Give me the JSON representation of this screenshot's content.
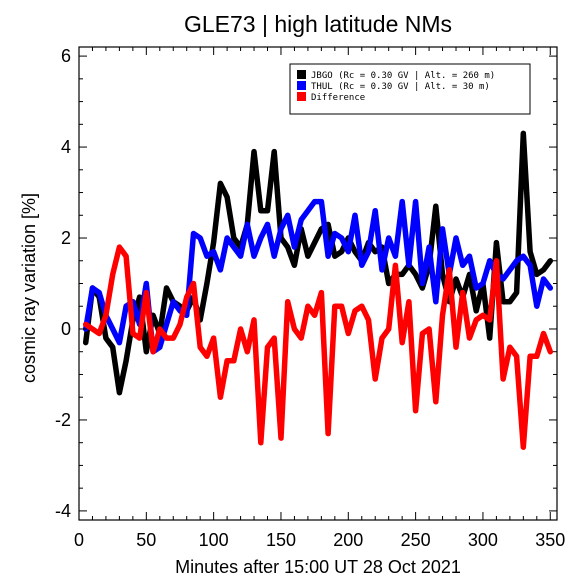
{
  "chart_data": {
    "type": "line",
    "title": "GLE73 | high latitude NMs",
    "xlabel": "Minutes after 15:00 UT 28 Oct 2021",
    "ylabel": "cosmic ray variation [%]",
    "xlim": [
      0,
      355
    ],
    "ylim": [
      -4.2,
      6.2
    ],
    "xticks": [
      0,
      50,
      100,
      150,
      200,
      250,
      300,
      350
    ],
    "yticks": [
      -4,
      -2,
      0,
      2,
      4,
      6
    ],
    "grid": false,
    "legend_position": "top-right",
    "series": [
      {
        "name": "JBGO (Rc = 0.30 GV | Alt. = 260 m)",
        "color": "#000000",
        "x": [
          5,
          10,
          15,
          20,
          25,
          30,
          35,
          40,
          45,
          50,
          55,
          60,
          65,
          70,
          75,
          80,
          85,
          90,
          95,
          100,
          105,
          110,
          115,
          120,
          125,
          130,
          135,
          140,
          145,
          150,
          155,
          160,
          165,
          170,
          175,
          180,
          185,
          190,
          195,
          200,
          205,
          210,
          215,
          220,
          225,
          230,
          235,
          240,
          245,
          250,
          255,
          260,
          265,
          270,
          275,
          280,
          285,
          290,
          295,
          300,
          305,
          310,
          315,
          320,
          325,
          330,
          335,
          340,
          345,
          350
        ],
        "y": [
          -0.3,
          0.9,
          0.7,
          -0.2,
          -0.4,
          -1.4,
          -0.7,
          0.2,
          0.7,
          -0.5,
          0.3,
          -0.1,
          0.9,
          0.6,
          0.5,
          0.4,
          0.7,
          0.2,
          1.0,
          1.9,
          3.2,
          2.9,
          2.0,
          1.8,
          2.3,
          3.9,
          2.6,
          2.6,
          3.9,
          2.0,
          1.8,
          1.4,
          2.2,
          1.6,
          1.9,
          2.2,
          2.3,
          1.6,
          1.7,
          2.0,
          1.7,
          1.5,
          1.9,
          1.7,
          1.8,
          1.0,
          1.2,
          1.2,
          1.4,
          1.2,
          0.9,
          1.4,
          2.7,
          1.2,
          0.6,
          1.1,
          0.7,
          1.2,
          0.4,
          1.0,
          -0.2,
          1.9,
          0.6,
          0.6,
          0.8,
          4.3,
          1.7,
          1.2,
          1.3,
          1.5
        ]
      },
      {
        "name": "THUL (Rc = 0.30 GV | Alt. = 30 m)",
        "color": "#0000ff",
        "x": [
          5,
          10,
          15,
          20,
          25,
          30,
          35,
          40,
          45,
          50,
          55,
          60,
          65,
          70,
          75,
          80,
          85,
          90,
          95,
          100,
          105,
          110,
          115,
          120,
          125,
          130,
          135,
          140,
          145,
          150,
          155,
          160,
          165,
          170,
          175,
          180,
          185,
          190,
          195,
          200,
          205,
          210,
          215,
          220,
          225,
          230,
          235,
          240,
          245,
          250,
          255,
          260,
          265,
          270,
          275,
          280,
          285,
          290,
          295,
          300,
          305,
          310,
          315,
          320,
          325,
          330,
          335,
          340,
          345,
          350
        ],
        "y": [
          0.0,
          0.9,
          0.8,
          0.3,
          0.0,
          -0.3,
          0.5,
          0.6,
          0.1,
          1.0,
          -0.5,
          -0.4,
          0.1,
          0.6,
          0.4,
          0.3,
          2.1,
          2.0,
          1.6,
          1.7,
          1.3,
          2.0,
          1.8,
          1.6,
          2.3,
          1.6,
          2.0,
          2.3,
          1.6,
          2.2,
          2.5,
          1.8,
          2.4,
          2.6,
          2.8,
          2.8,
          1.6,
          2.1,
          2.0,
          1.7,
          2.5,
          1.4,
          1.7,
          2.6,
          1.3,
          2.0,
          1.6,
          2.8,
          1.4,
          2.8,
          1.0,
          1.8,
          0.6,
          2.2,
          1.2,
          2.0,
          1.4,
          1.6,
          0.9,
          1.0,
          1.5,
          1.2,
          1.1,
          1.3,
          1.5,
          1.6,
          1.4,
          0.5,
          1.1,
          0.9
        ]
      },
      {
        "name": "Difference",
        "color": "#ff0000",
        "x": [
          5,
          10,
          15,
          20,
          25,
          30,
          35,
          40,
          45,
          50,
          55,
          60,
          65,
          70,
          75,
          80,
          85,
          90,
          95,
          100,
          105,
          110,
          115,
          120,
          125,
          130,
          135,
          140,
          145,
          150,
          155,
          160,
          165,
          170,
          175,
          180,
          185,
          190,
          195,
          200,
          205,
          210,
          215,
          220,
          225,
          230,
          235,
          240,
          245,
          250,
          255,
          260,
          265,
          270,
          275,
          280,
          285,
          290,
          295,
          300,
          305,
          310,
          315,
          320,
          325,
          330,
          335,
          340,
          345,
          350
        ],
        "y": [
          0.1,
          0.0,
          -0.1,
          0.3,
          1.2,
          1.8,
          1.6,
          -0.1,
          -0.2,
          0.8,
          -0.5,
          0.0,
          -0.2,
          -0.2,
          0.1,
          0.7,
          1.0,
          -0.4,
          -0.6,
          -0.2,
          -1.5,
          -0.7,
          -0.7,
          0.0,
          -0.5,
          0.2,
          -2.5,
          -0.4,
          -0.2,
          -2.4,
          0.6,
          0.0,
          -0.2,
          0.5,
          0.3,
          0.8,
          -2.3,
          0.5,
          0.5,
          -0.1,
          0.4,
          0.5,
          0.2,
          -1.1,
          -0.2,
          0.0,
          1.4,
          -0.3,
          0.6,
          -1.8,
          -0.1,
          0.0,
          -1.6,
          0.3,
          1.3,
          -0.4,
          0.8,
          -0.2,
          0.2,
          0.3,
          0.2,
          1.5,
          -1.1,
          -0.4,
          -0.6,
          -2.6,
          -0.6,
          -0.6,
          -0.1,
          -0.5
        ]
      }
    ]
  }
}
